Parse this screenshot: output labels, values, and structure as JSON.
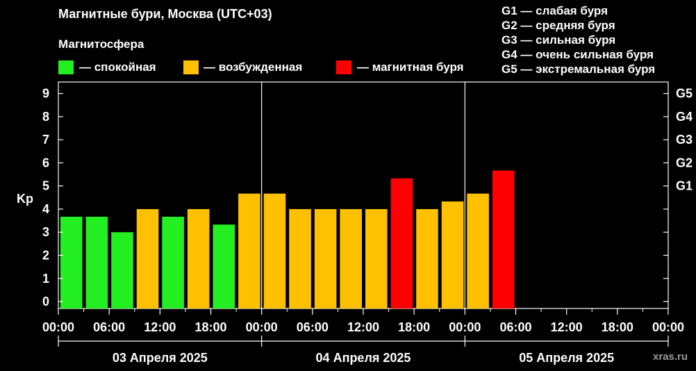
{
  "header": {
    "title": "Магнитные бури, Москва (UTC+03)",
    "legend_title": "Магнитосфера",
    "legend_items": [
      {
        "color": "#22ee22",
        "label": "— спокойная"
      },
      {
        "color": "#ffc000",
        "label": "— возбужденная"
      },
      {
        "color": "#ff0000",
        "label": "— магнитная буря"
      }
    ],
    "g_scale": [
      "G1 — слабая буря",
      "G2 — средняя буря",
      "G3 — сильная буря",
      "G4 — очень сильная буря",
      "G5 — экстремальная буря"
    ]
  },
  "watermark": "xras.ru",
  "chart_data": {
    "type": "bar",
    "title": "Магнитные бури, Москва (UTC+03)",
    "ylabel": "Kp",
    "ylim": [
      -0.3,
      9.5
    ],
    "y_ticks": [
      "0",
      "1",
      "2",
      "3",
      "4",
      "5",
      "6",
      "7",
      "8",
      "9"
    ],
    "right_ticks": [
      {
        "label": "G1",
        "kp": 5
      },
      {
        "label": "G2",
        "kp": 6
      },
      {
        "label": "G3",
        "kp": 7
      },
      {
        "label": "G4",
        "kp": 8
      },
      {
        "label": "G5",
        "kp": 9
      }
    ],
    "x_tick_labels": [
      "00:00",
      "06:00",
      "12:00",
      "18:00",
      "00:00",
      "06:00",
      "12:00",
      "18:00",
      "00:00",
      "06:00",
      "12:00",
      "18:00",
      "00:00"
    ],
    "day_labels": [
      "03 Апреля 2025",
      "04 Апреля 2025",
      "05 Апреля 2025"
    ],
    "colors": {
      "quiet": "#22ee22",
      "active": "#ffc000",
      "storm": "#ff0000"
    },
    "bars": [
      {
        "time": "03 Апреля 2025 00:00",
        "kp": 3.67,
        "level": "quiet"
      },
      {
        "time": "03 Апреля 2025 03:00",
        "kp": 3.67,
        "level": "quiet"
      },
      {
        "time": "03 Апреля 2025 06:00",
        "kp": 3.0,
        "level": "quiet"
      },
      {
        "time": "03 Апреля 2025 09:00",
        "kp": 4.0,
        "level": "active"
      },
      {
        "time": "03 Апреля 2025 12:00",
        "kp": 3.67,
        "level": "quiet"
      },
      {
        "time": "03 Апреля 2025 15:00",
        "kp": 4.0,
        "level": "active"
      },
      {
        "time": "03 Апреля 2025 18:00",
        "kp": 3.33,
        "level": "quiet"
      },
      {
        "time": "03 Апреля 2025 21:00",
        "kp": 4.67,
        "level": "active"
      },
      {
        "time": "04 Апреля 2025 00:00",
        "kp": 4.67,
        "level": "active"
      },
      {
        "time": "04 Апреля 2025 03:00",
        "kp": 4.0,
        "level": "active"
      },
      {
        "time": "04 Апреля 2025 06:00",
        "kp": 4.0,
        "level": "active"
      },
      {
        "time": "04 Апреля 2025 09:00",
        "kp": 4.0,
        "level": "active"
      },
      {
        "time": "04 Апреля 2025 12:00",
        "kp": 4.0,
        "level": "active"
      },
      {
        "time": "04 Апреля 2025 15:00",
        "kp": 5.33,
        "level": "storm"
      },
      {
        "time": "04 Апреля 2025 18:00",
        "kp": 4.0,
        "level": "active"
      },
      {
        "time": "04 Апреля 2025 21:00",
        "kp": 4.33,
        "level": "active"
      },
      {
        "time": "05 Апреля 2025 00:00",
        "kp": 4.67,
        "level": "active"
      },
      {
        "time": "05 Апреля 2025 03:00",
        "kp": 5.67,
        "level": "storm"
      }
    ]
  }
}
